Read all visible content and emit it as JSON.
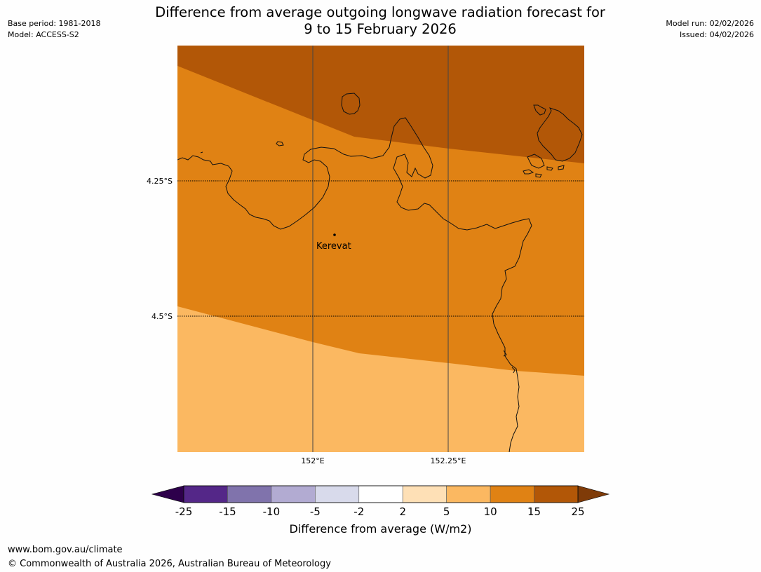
{
  "title": {
    "line1": "Difference from average outgoing longwave radiation forecast for",
    "line2": "9 to 15 February 2026"
  },
  "meta_left": {
    "base_period": "Base period: 1981-2018",
    "model": "Model: ACCESS-S2"
  },
  "meta_right": {
    "model_run": "Model run: 02/02/2026",
    "issued": "Issued: 04/02/2026"
  },
  "map": {
    "lat_labels": [
      "4.25°S",
      "4.5°S"
    ],
    "lon_labels": [
      "152°E",
      "152.25°E"
    ],
    "place": {
      "name": "Kerevat"
    },
    "colors": {
      "band_15_25": "#b25707",
      "band_10_15": "#e08214",
      "band_5_10": "#fbb861",
      "coast": "#111111",
      "grid": "#444444"
    }
  },
  "colorbar": {
    "title": "Difference from average (W/m2)",
    "tick_labels": [
      "-25",
      "-15",
      "-10",
      "-5",
      "-2",
      "2",
      "5",
      "10",
      "15",
      "25"
    ],
    "colors": [
      "#542788",
      "#8073ac",
      "#b2abd2",
      "#d8daeb",
      "#ffffff",
      "#fee0b6",
      "#fbb861",
      "#e08214",
      "#b25707"
    ],
    "under_color": "#2d004b",
    "over_color": "#7f3b08"
  },
  "footer": {
    "url": "www.bom.gov.au/climate",
    "copyright": "© Commonwealth of Australia 2026, Australian Bureau of Meteorology"
  }
}
